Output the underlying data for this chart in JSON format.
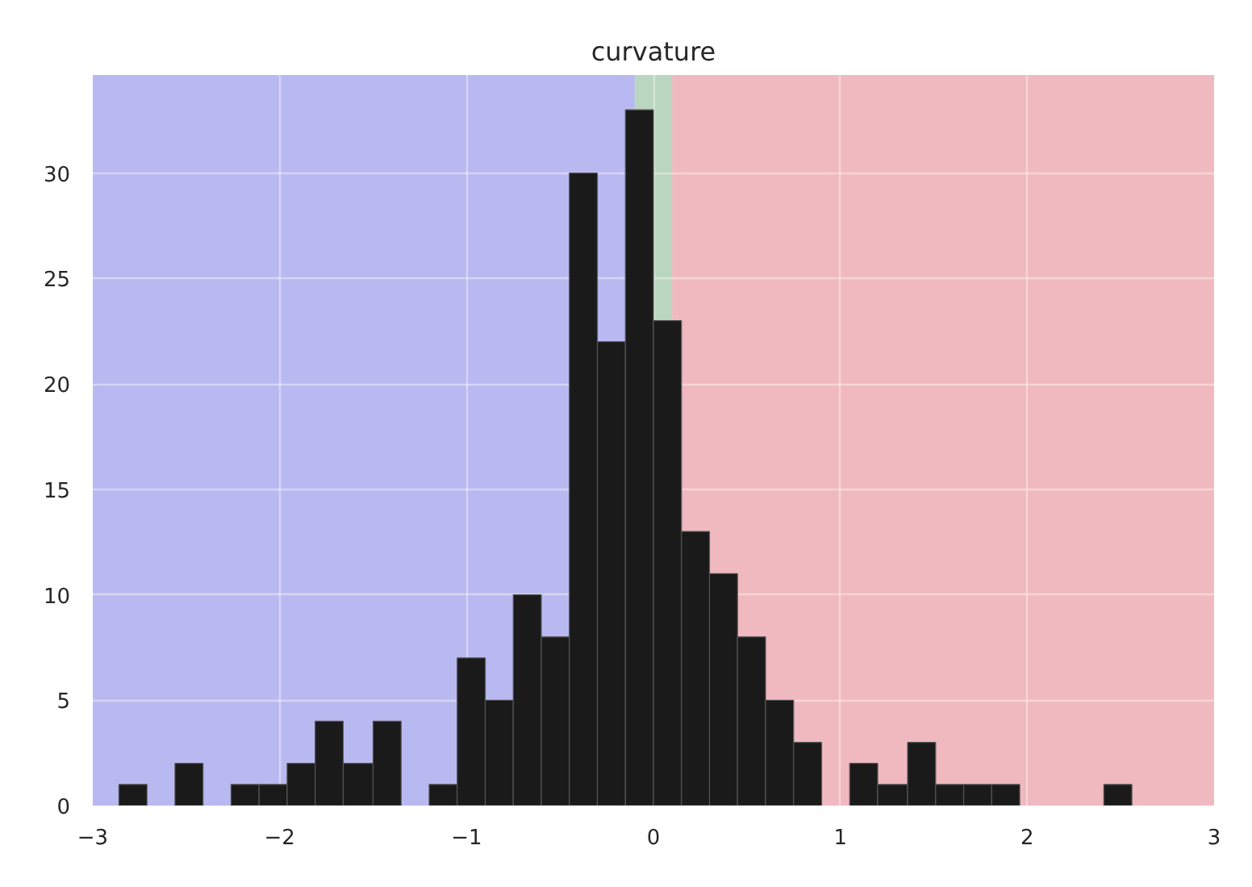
{
  "chart_data": {
    "type": "histogram",
    "title": "curvature",
    "bins": [
      -2.86,
      -2.71,
      -2.56,
      -2.41,
      -2.26,
      -2.11,
      -1.96,
      -1.81,
      -1.66,
      -1.5,
      -1.35,
      -1.2,
      -1.05,
      -0.9,
      -0.75,
      -0.6,
      -0.45,
      -0.3,
      -0.15,
      0,
      0.15,
      0.3,
      0.45,
      0.6,
      0.75,
      0.9,
      1.05,
      1.2,
      1.36,
      1.51,
      1.66,
      1.81,
      1.96,
      2.41,
      2.56
    ],
    "values": [
      1,
      0,
      2,
      0,
      1,
      1,
      2,
      4,
      2,
      4,
      0,
      1,
      7,
      5,
      10,
      8,
      30,
      22,
      33,
      23,
      13,
      11,
      8,
      5,
      3,
      0,
      2,
      1,
      3,
      1,
      1,
      1,
      0,
      1
    ],
    "color": "#1a1a1a",
    "xlim": [
      -3,
      3
    ],
    "ylim": [
      0,
      34.65
    ],
    "xticks": [
      {
        "value": -3,
        "label": "−3"
      },
      {
        "value": -2,
        "label": "−2"
      },
      {
        "value": -1,
        "label": "−1"
      },
      0,
      1,
      2,
      3
    ],
    "yticks": [
      0,
      5,
      10,
      15,
      20,
      25,
      30
    ],
    "grid": true,
    "bands": [
      {
        "axis": "x",
        "from": -3,
        "to": -0.1,
        "color": "#b9b9f1"
      },
      {
        "axis": "x",
        "from": -0.1,
        "to": 0.1,
        "color": "#bbd6c0"
      },
      {
        "axis": "x",
        "from": 0.1,
        "to": 3,
        "color": "#efb9bf"
      }
    ]
  }
}
